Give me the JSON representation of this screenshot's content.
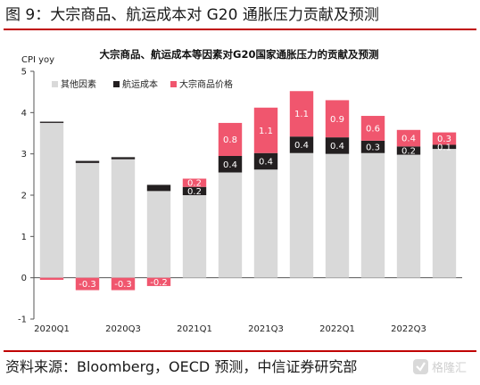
{
  "figure": {
    "title": "图 9：大宗商品、航运成本对 G20 通胀压力贡献及预测",
    "source": "资料来源：Bloomberg，OECD 预测，中信证券研究部",
    "watermark": "格隆汇"
  },
  "colors": {
    "accent_rule": "#c00000",
    "other": "#d9d9d9",
    "shipping": "#231f20",
    "commodity": "#f0566e",
    "label_dark": "#ffffff",
    "label_light": "#ffffff"
  },
  "chart_data": {
    "type": "bar",
    "stacked": true,
    "title": "大宗商品、航运成本等因素对G20国家通胀压力的贡献及预测",
    "ylabel": "CPI yoy",
    "xlabel": "",
    "ylim": [
      -1,
      5
    ],
    "yticks": [
      -1,
      0,
      1,
      2,
      3,
      4,
      5
    ],
    "grid": false,
    "legend_position": "top-left",
    "categories": [
      "2020Q1",
      "2020Q2",
      "2020Q3",
      "2020Q4",
      "2021Q1",
      "2021Q2",
      "2021Q3",
      "2021Q4",
      "2022Q1",
      "2022Q2",
      "2022Q3",
      "2022Q4"
    ],
    "tick_labels": [
      "2020Q1",
      "",
      "2020Q3",
      "",
      "2021Q1",
      "",
      "2021Q3",
      "",
      "2022Q1",
      "",
      "2022Q3",
      ""
    ],
    "series": [
      {
        "name": "其他因素",
        "color_key": "other",
        "values": [
          3.75,
          2.78,
          2.87,
          2.1,
          2.0,
          2.55,
          2.62,
          3.02,
          3.0,
          3.02,
          2.98,
          3.12
        ]
      },
      {
        "name": "航运成本",
        "color_key": "shipping",
        "values": [
          0.03,
          0.05,
          0.05,
          0.15,
          0.2,
          0.4,
          0.4,
          0.4,
          0.4,
          0.3,
          0.2,
          0.1
        ]
      },
      {
        "name": "大宗商品价格",
        "color_key": "commodity",
        "values": [
          -0.05,
          -0.3,
          -0.3,
          -0.2,
          0.2,
          0.8,
          1.1,
          1.1,
          0.9,
          0.6,
          0.4,
          0.3
        ]
      }
    ],
    "data_labels": [
      {
        "category": "2020Q2",
        "series": "大宗商品价格",
        "text": "-0.3"
      },
      {
        "category": "2020Q3",
        "series": "大宗商品价格",
        "text": "-0.3"
      },
      {
        "category": "2020Q4",
        "series": "大宗商品价格",
        "text": "-0.2"
      },
      {
        "category": "2021Q1",
        "series": "航运成本",
        "text": "0.2"
      },
      {
        "category": "2021Q1",
        "series": "大宗商品价格",
        "text": "0.2"
      },
      {
        "category": "2021Q2",
        "series": "航运成本",
        "text": "0.4"
      },
      {
        "category": "2021Q2",
        "series": "大宗商品价格",
        "text": "0.8"
      },
      {
        "category": "2021Q3",
        "series": "航运成本",
        "text": "0.4"
      },
      {
        "category": "2021Q3",
        "series": "大宗商品价格",
        "text": "1.1"
      },
      {
        "category": "2021Q4",
        "series": "航运成本",
        "text": "0.4"
      },
      {
        "category": "2021Q4",
        "series": "大宗商品价格",
        "text": "1.1"
      },
      {
        "category": "2022Q1",
        "series": "航运成本",
        "text": "0.4"
      },
      {
        "category": "2022Q1",
        "series": "大宗商品价格",
        "text": "0.9"
      },
      {
        "category": "2022Q2",
        "series": "航运成本",
        "text": "0.3"
      },
      {
        "category": "2022Q2",
        "series": "大宗商品价格",
        "text": "0.6"
      },
      {
        "category": "2022Q3",
        "series": "航运成本",
        "text": "0.2"
      },
      {
        "category": "2022Q3",
        "series": "大宗商品价格",
        "text": "0.4"
      },
      {
        "category": "2022Q4",
        "series": "航运成本",
        "text": "0.1"
      },
      {
        "category": "2022Q4",
        "series": "大宗商品价格",
        "text": "0.3"
      }
    ]
  }
}
